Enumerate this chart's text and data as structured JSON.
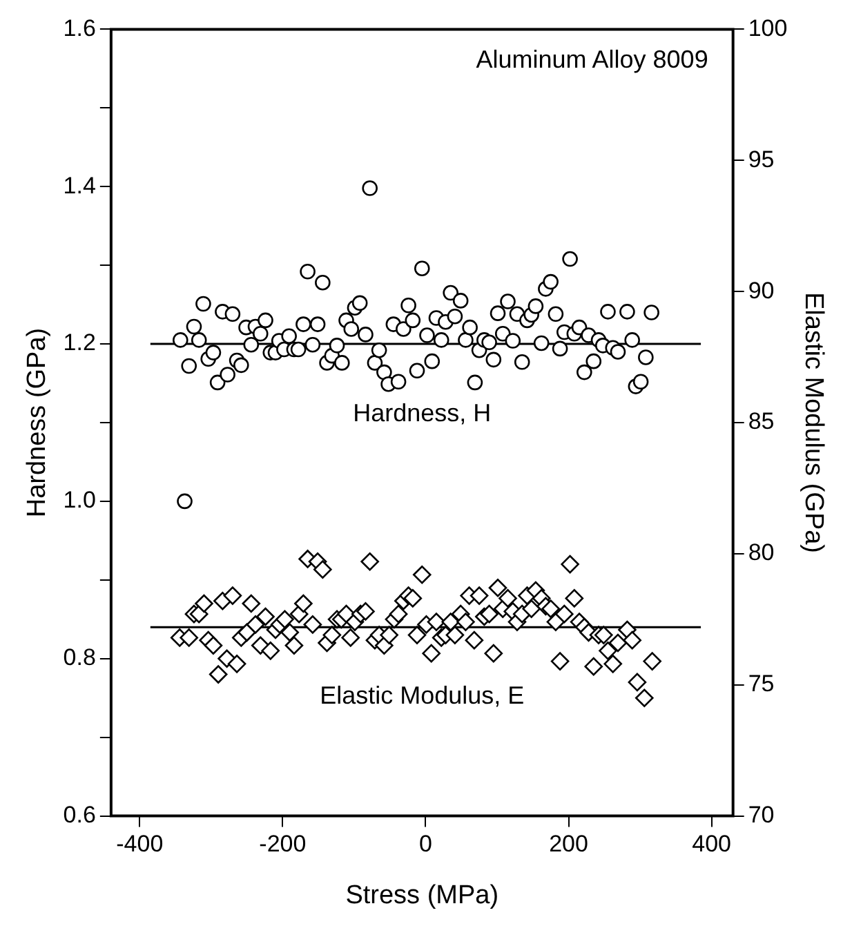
{
  "chart_data": {
    "type": "scatter",
    "xlabel": "Stress (MPa)",
    "ylabel": "Hardness (GPa)",
    "y2label": "Elastic Modulus (GPa)",
    "annotations": [
      "Aluminum Alloy 8009"
    ],
    "legend": false,
    "xlim": [
      -440,
      430
    ],
    "xticks": [
      -400,
      -200,
      0,
      200,
      400
    ],
    "ylim": [
      0.6,
      1.6
    ],
    "yticks": [
      0.6,
      {
        "value": 0.7,
        "label": null
      },
      0.8,
      {
        "value": 0.9,
        "label": null
      },
      {
        "value": 1.0,
        "label": "1.0"
      },
      {
        "value": 1.1,
        "label": null
      },
      1.2,
      {
        "value": 1.3,
        "label": null
      },
      1.4,
      {
        "value": 1.5,
        "label": null
      },
      1.6
    ],
    "y2lim": [
      70,
      100
    ],
    "y2ticks": [
      70,
      75,
      80,
      85,
      90,
      95,
      100
    ],
    "series": [
      {
        "name": "Hardness, H",
        "type": "scatter",
        "marker": "circle",
        "color": "#000000",
        "x": [
          -343,
          -337,
          -331,
          -324,
          -317,
          -311,
          -304,
          -297,
          -291,
          -284,
          -277,
          -270,
          -264,
          -258,
          -251,
          -244,
          -238,
          -231,
          -224,
          -217,
          -210,
          -205,
          -198,
          -191,
          -184,
          -178,
          -171,
          -165,
          -158,
          -151,
          -144,
          -138,
          -131,
          -124,
          -117,
          -111,
          -104,
          -99,
          -92,
          -84,
          -78,
          -71,
          -65,
          -58,
          -52,
          -45,
          -38,
          -31,
          -24,
          -18,
          -12,
          -5,
          2,
          9,
          15,
          22,
          28,
          35,
          41,
          49,
          56,
          62,
          69,
          75,
          82,
          89,
          95,
          101,
          108,
          115,
          122,
          128,
          135,
          142,
          148,
          154,
          162,
          168,
          175,
          182,
          188,
          194,
          202,
          208,
          215,
          222,
          228,
          235,
          242,
          248,
          255,
          262,
          269,
          282,
          289,
          294,
          301,
          308,
          316
        ],
        "values": [
          1.205,
          1.0,
          1.172,
          1.222,
          1.205,
          1.251,
          1.181,
          1.189,
          1.151,
          1.241,
          1.161,
          1.238,
          1.179,
          1.173,
          1.221,
          1.199,
          1.222,
          1.213,
          1.23,
          1.189,
          1.189,
          1.204,
          1.193,
          1.21,
          1.193,
          1.193,
          1.225,
          1.292,
          1.199,
          1.225,
          1.278,
          1.176,
          1.185,
          1.198,
          1.176,
          1.23,
          1.219,
          1.246,
          1.252,
          1.212,
          1.398,
          1.176,
          1.192,
          1.164,
          1.149,
          1.225,
          1.152,
          1.219,
          1.249,
          1.23,
          1.166,
          1.296,
          1.211,
          1.178,
          1.233,
          1.205,
          1.228,
          1.265,
          1.235,
          1.255,
          1.205,
          1.221,
          1.151,
          1.192,
          1.205,
          1.202,
          1.18,
          1.239,
          1.213,
          1.254,
          1.204,
          1.238,
          1.177,
          1.23,
          1.237,
          1.248,
          1.201,
          1.27,
          1.279,
          1.238,
          1.194,
          1.215,
          1.308,
          1.213,
          1.221,
          1.164,
          1.211,
          1.178,
          1.205,
          1.198,
          1.241,
          1.195,
          1.19,
          1.241,
          1.205,
          1.146,
          1.152,
          1.183,
          1.24
        ]
      },
      {
        "type": "line",
        "color": "#000000",
        "x": [
          -385,
          385
        ],
        "values": [
          1.2,
          1.2
        ]
      },
      {
        "name": "Elastic Modulus, E",
        "type": "scatter",
        "marker": "diamond",
        "axis": "y2",
        "color": "#000000",
        "x": [
          -344,
          -331,
          -324,
          -317,
          -310,
          -304,
          -297,
          -290,
          -284,
          -278,
          -270,
          -264,
          -258,
          -250,
          -244,
          -238,
          -231,
          -224,
          -217,
          -210,
          -204,
          -197,
          -190,
          -184,
          -177,
          -171,
          -165,
          -158,
          -151,
          -144,
          -138,
          -131,
          -124,
          -118,
          -111,
          -105,
          -99,
          -91,
          -84,
          -78,
          -71,
          -65,
          -58,
          -51,
          -44,
          -38,
          -31,
          -24,
          -18,
          -12,
          -5,
          1,
          8,
          15,
          22,
          28,
          35,
          41,
          49,
          56,
          61,
          68,
          75,
          82,
          89,
          95,
          101,
          108,
          115,
          122,
          128,
          135,
          142,
          148,
          154,
          162,
          168,
          175,
          182,
          188,
          194,
          202,
          208,
          215,
          222,
          228,
          235,
          242,
          249,
          255,
          262,
          269,
          282,
          289,
          296,
          306,
          317
        ],
        "values": [
          76.8,
          76.8,
          77.7,
          77.7,
          78.1,
          76.7,
          76.5,
          75.4,
          78.2,
          76.0,
          78.4,
          75.8,
          76.8,
          77.0,
          78.1,
          77.3,
          76.5,
          77.6,
          76.3,
          77.1,
          77.3,
          77.5,
          77.0,
          76.5,
          77.7,
          78.1,
          79.8,
          77.3,
          79.7,
          79.4,
          76.6,
          76.9,
          77.5,
          77.5,
          77.7,
          76.8,
          77.4,
          77.7,
          77.8,
          79.7,
          76.7,
          76.9,
          76.5,
          76.9,
          77.5,
          77.7,
          78.2,
          78.4,
          78.3,
          76.9,
          79.2,
          77.3,
          76.2,
          77.4,
          76.8,
          76.9,
          77.4,
          76.9,
          77.7,
          77.4,
          78.4,
          76.7,
          78.4,
          77.6,
          77.7,
          76.2,
          78.7,
          77.9,
          78.3,
          77.8,
          77.4,
          77.7,
          78.4,
          77.9,
          78.6,
          78.3,
          78.0,
          77.9,
          77.4,
          75.9,
          77.7,
          79.6,
          78.3,
          77.4,
          77.2,
          77.0,
          75.7,
          76.9,
          76.9,
          76.3,
          75.8,
          76.6,
          77.1,
          76.7,
          75.1,
          74.5,
          75.9
        ]
      },
      {
        "type": "line",
        "axis": "y2",
        "color": "#000000",
        "x": [
          -385,
          385
        ],
        "values": [
          77.2,
          77.2
        ]
      }
    ]
  }
}
